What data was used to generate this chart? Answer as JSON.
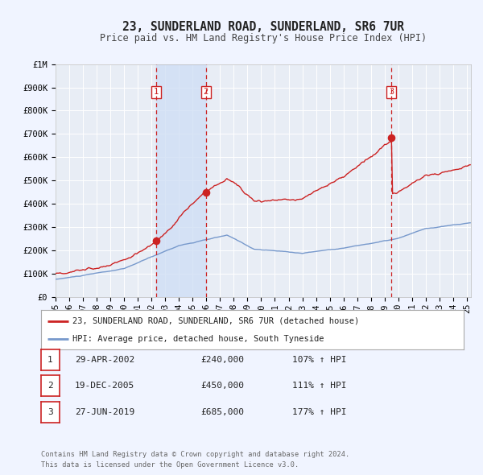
{
  "title": "23, SUNDERLAND ROAD, SUNDERLAND, SR6 7UR",
  "subtitle": "Price paid vs. HM Land Registry's House Price Index (HPI)",
  "title_fontsize": 10.5,
  "subtitle_fontsize": 8.5,
  "bg_color": "#f0f4ff",
  "plot_bg_color": "#e8edf5",
  "grid_color": "#ffffff",
  "hpi_line_color": "#7799cc",
  "price_line_color": "#cc2222",
  "sale_marker_color": "#cc2222",
  "vertical_line_color": "#cc2222",
  "span_color": "#d0dff5",
  "xlim": [
    1995,
    2025.3
  ],
  "ylim": [
    0,
    1000000
  ],
  "ytick_labels": [
    "£0",
    "£100K",
    "£200K",
    "£300K",
    "£400K",
    "£500K",
    "£600K",
    "£700K",
    "£800K",
    "£900K",
    "£1M"
  ],
  "ytick_values": [
    0,
    100000,
    200000,
    300000,
    400000,
    500000,
    600000,
    700000,
    800000,
    900000,
    1000000
  ],
  "xtick_years": [
    1995,
    1996,
    1997,
    1998,
    1999,
    2000,
    2001,
    2002,
    2003,
    2004,
    2005,
    2006,
    2007,
    2008,
    2009,
    2010,
    2011,
    2012,
    2013,
    2014,
    2015,
    2016,
    2017,
    2018,
    2019,
    2020,
    2021,
    2022,
    2023,
    2024,
    2025
  ],
  "xtick_labels": [
    "95",
    "96",
    "97",
    "98",
    "99",
    "00",
    "01",
    "02",
    "03",
    "04",
    "05",
    "06",
    "07",
    "08",
    "09",
    "10",
    "11",
    "12",
    "13",
    "14",
    "15",
    "16",
    "17",
    "18",
    "19",
    "20",
    "21",
    "22",
    "23",
    "24",
    "25"
  ],
  "sales": [
    {
      "label": "1",
      "date_x": 2002.33,
      "price": 240000,
      "date_str": "29-APR-2002",
      "price_str": "£240,000",
      "pct": "107%",
      "arrow": "↑"
    },
    {
      "label": "2",
      "date_x": 2005.97,
      "price": 450000,
      "date_str": "19-DEC-2005",
      "price_str": "£450,000",
      "pct": "111%",
      "arrow": "↑"
    },
    {
      "label": "3",
      "date_x": 2019.49,
      "price": 685000,
      "date_str": "27-JUN-2019",
      "price_str": "£685,000",
      "pct": "177%",
      "arrow": "↑"
    }
  ],
  "span_regions": [
    [
      2002.33,
      2005.97
    ]
  ],
  "legend_line1": "23, SUNDERLAND ROAD, SUNDERLAND, SR6 7UR (detached house)",
  "legend_line2": "HPI: Average price, detached house, South Tyneside",
  "footer_line1": "Contains HM Land Registry data © Crown copyright and database right 2024.",
  "footer_line2": "This data is licensed under the Open Government Licence v3.0."
}
